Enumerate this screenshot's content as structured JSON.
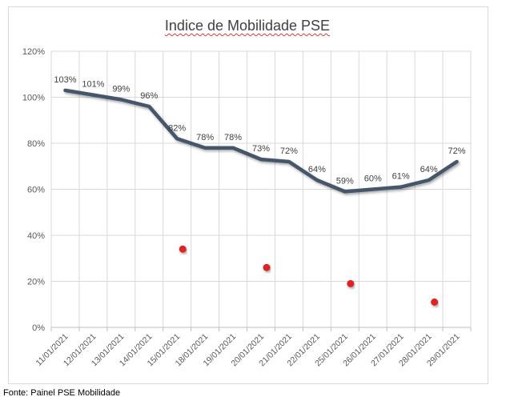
{
  "chart_data": {
    "type": "line",
    "title": "Indice de Mobilidade PSE",
    "xlabel": "",
    "ylabel": "",
    "ylim": [
      0,
      120
    ],
    "y_ticks": [
      "0%",
      "20%",
      "40%",
      "60%",
      "80%",
      "100%",
      "120%"
    ],
    "grid": true,
    "legend": "none",
    "categories": [
      "11/01/2021",
      "12/01/2021",
      "13/01/2021",
      "14/01/2021",
      "15/01/2021",
      "18/01/2021",
      "19/01/2021",
      "20/01/2021",
      "21/01/2021",
      "22/01/2021",
      "25/01/2021",
      "26/01/2021",
      "27/01/2021",
      "28/01/2021",
      "29/01/2021"
    ],
    "series": [
      {
        "values": [
          103,
          101,
          99,
          96,
          82,
          78,
          78,
          73,
          72,
          64,
          59,
          60,
          61,
          64,
          72
        ],
        "labels": [
          "103%",
          "101%",
          "99%",
          "96%",
          "82%",
          "78%",
          "78%",
          "73%",
          "72%",
          "64%",
          "59%",
          "60%",
          "61%",
          "64%",
          "72%"
        ],
        "color": "#44546a"
      }
    ],
    "markers": [
      {
        "x_index": 4.2,
        "value": 34,
        "color": "#e02020"
      },
      {
        "x_index": 7.2,
        "value": 26,
        "color": "#e02020"
      },
      {
        "x_index": 10.2,
        "value": 19,
        "color": "#e02020"
      },
      {
        "x_index": 13.2,
        "value": 11,
        "color": "#e02020"
      }
    ]
  },
  "source": "Fonte: Painel PSE Mobilidade"
}
